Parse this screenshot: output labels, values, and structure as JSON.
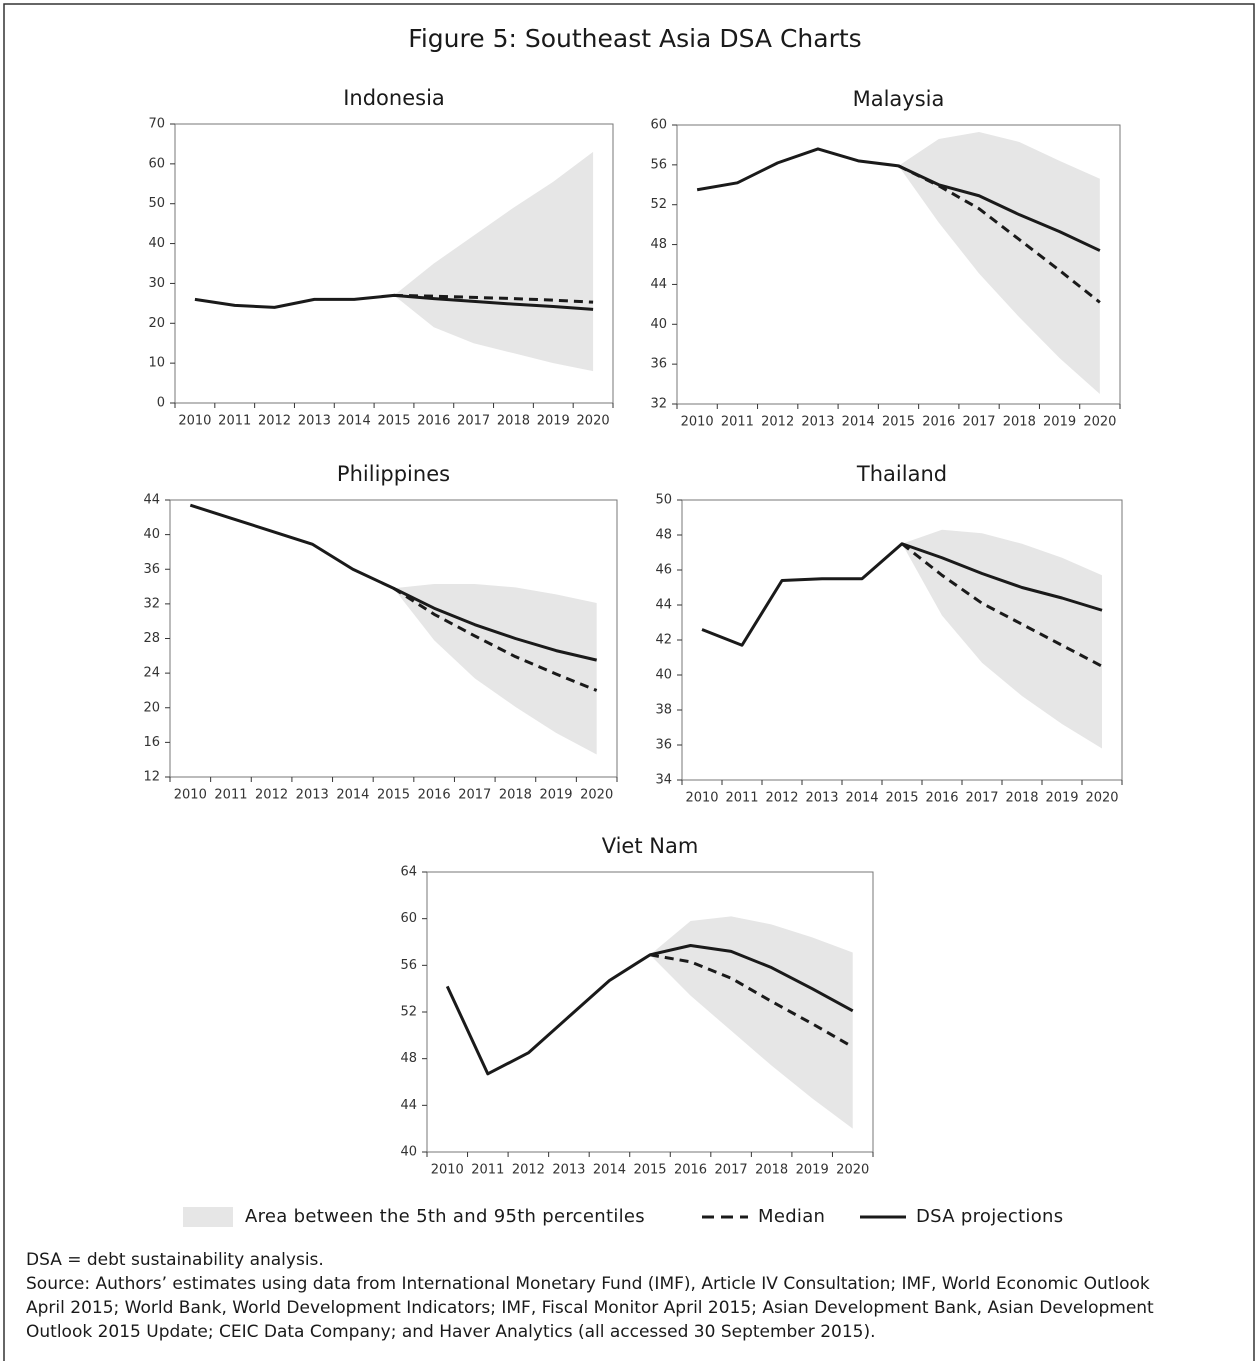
{
  "title": "Figure 5: Southeast Asia DSA Charts",
  "legend": [
    {
      "label": "Area between the 5th and 95th percentiles",
      "mark": "area",
      "color": "#e6e6e6"
    },
    {
      "label": "Median",
      "mark": "dashed-line",
      "color": "#1a1a1a"
    },
    {
      "label": "DSA projections",
      "mark": "solid-line",
      "color": "#1a1a1a"
    }
  ],
  "chart_data": [
    {
      "type": "line",
      "title": "Indonesia",
      "categories": [
        "2010",
        "2011",
        "2012",
        "2013",
        "2014",
        "2015",
        "2016",
        "2017",
        "2018",
        "2019",
        "2020"
      ],
      "ylim": [
        0,
        70
      ],
      "yticks": [
        0,
        10,
        20,
        30,
        40,
        50,
        60,
        70
      ],
      "dsa": [
        26,
        24.5,
        24,
        26,
        26,
        27,
        26.2,
        25.5,
        24.8,
        24.2,
        23.5
      ],
      "median": [
        null,
        null,
        null,
        null,
        null,
        27,
        26.8,
        26.5,
        26.2,
        25.8,
        25.3
      ],
      "upper": [
        null,
        null,
        null,
        null,
        null,
        27,
        35,
        42,
        49,
        55.5,
        63
      ],
      "lower": [
        null,
        null,
        null,
        null,
        null,
        27,
        19,
        15,
        12.5,
        10,
        8
      ]
    },
    {
      "type": "line",
      "title": "Malaysia",
      "categories": [
        "2010",
        "2011",
        "2012",
        "2013",
        "2014",
        "2015",
        "2016",
        "2017",
        "2018",
        "2019",
        "2020"
      ],
      "ylim": [
        32,
        60
      ],
      "yticks": [
        32,
        36,
        40,
        44,
        48,
        52,
        56,
        60
      ],
      "dsa": [
        53.5,
        54.2,
        56.2,
        57.6,
        56.4,
        55.9,
        54,
        52.9,
        51,
        49.3,
        47.4
      ],
      "median": [
        null,
        null,
        null,
        null,
        null,
        55.9,
        53.9,
        51.6,
        48.5,
        45.4,
        42.2
      ],
      "upper": [
        null,
        null,
        null,
        null,
        null,
        55.9,
        58.6,
        59.3,
        58.3,
        56.4,
        54.6
      ],
      "lower": [
        null,
        null,
        null,
        null,
        null,
        55.9,
        50.2,
        45.1,
        40.7,
        36.6,
        33
      ]
    },
    {
      "type": "line",
      "title": "Philippines",
      "categories": [
        "2010",
        "2011",
        "2012",
        "2013",
        "2014",
        "2015",
        "2016",
        "2017",
        "2018",
        "2019",
        "2020"
      ],
      "ylim": [
        12,
        44
      ],
      "yticks": [
        12,
        16,
        20,
        24,
        28,
        32,
        36,
        40,
        44
      ],
      "dsa": [
        43.4,
        41.9,
        40.4,
        38.9,
        36,
        33.8,
        31.5,
        29.6,
        28,
        26.6,
        25.5
      ],
      "median": [
        null,
        null,
        null,
        null,
        null,
        33.8,
        30.8,
        28.3,
        25.9,
        23.9,
        22
      ],
      "upper": [
        null,
        null,
        null,
        null,
        null,
        33.8,
        34.3,
        34.3,
        33.9,
        33.1,
        32.1
      ],
      "lower": [
        null,
        null,
        null,
        null,
        null,
        33.8,
        27.8,
        23.4,
        20.1,
        17.1,
        14.6
      ]
    },
    {
      "type": "line",
      "title": "Thailand",
      "categories": [
        "2010",
        "2011",
        "2012",
        "2013",
        "2014",
        "2015",
        "2016",
        "2017",
        "2018",
        "2019",
        "2020"
      ],
      "ylim": [
        34,
        50
      ],
      "yticks": [
        34,
        36,
        38,
        40,
        42,
        44,
        46,
        48,
        50
      ],
      "dsa": [
        42.6,
        41.7,
        45.4,
        45.5,
        45.5,
        47.5,
        46.7,
        45.8,
        45,
        44.4,
        43.7
      ],
      "median": [
        null,
        null,
        null,
        null,
        null,
        47.5,
        45.7,
        44.1,
        42.9,
        41.7,
        40.5
      ],
      "upper": [
        null,
        null,
        null,
        null,
        null,
        47.5,
        48.3,
        48.1,
        47.5,
        46.7,
        45.7
      ],
      "lower": [
        null,
        null,
        null,
        null,
        null,
        47.5,
        43.4,
        40.7,
        38.8,
        37.2,
        35.8
      ]
    },
    {
      "type": "line",
      "title": "Viet Nam",
      "categories": [
        "2010",
        "2011",
        "2012",
        "2013",
        "2014",
        "2015",
        "2016",
        "2017",
        "2018",
        "2019",
        "2020"
      ],
      "ylim": [
        40,
        64
      ],
      "yticks": [
        40,
        44,
        48,
        52,
        56,
        60,
        64
      ],
      "dsa": [
        54.2,
        46.7,
        48.5,
        51.6,
        54.7,
        56.9,
        57.7,
        57.2,
        55.8,
        54,
        52.1
      ],
      "median": [
        null,
        null,
        null,
        null,
        null,
        56.9,
        56.3,
        54.9,
        52.9,
        51,
        49
      ],
      "upper": [
        null,
        null,
        null,
        null,
        null,
        56.9,
        59.8,
        60.2,
        59.5,
        58.4,
        57.1
      ],
      "lower": [
        null,
        null,
        null,
        null,
        null,
        56.9,
        53.4,
        50.4,
        47.4,
        44.6,
        42
      ]
    }
  ],
  "notes": [
    "DSA = debt sustainability analysis.",
    "Source: Authors’ estimates using data from International Monetary Fund (IMF),  Article IV Consultation; IMF, World Economic Outlook",
    "April 2015; World Bank, World Development Indicators; IMF, Fiscal Monitor April 2015;  Asian Development Bank, Asian Development",
    "Outlook 2015 Update; CEIC Data Company; and Haver Analytics (all accessed 30 September 2015)."
  ]
}
